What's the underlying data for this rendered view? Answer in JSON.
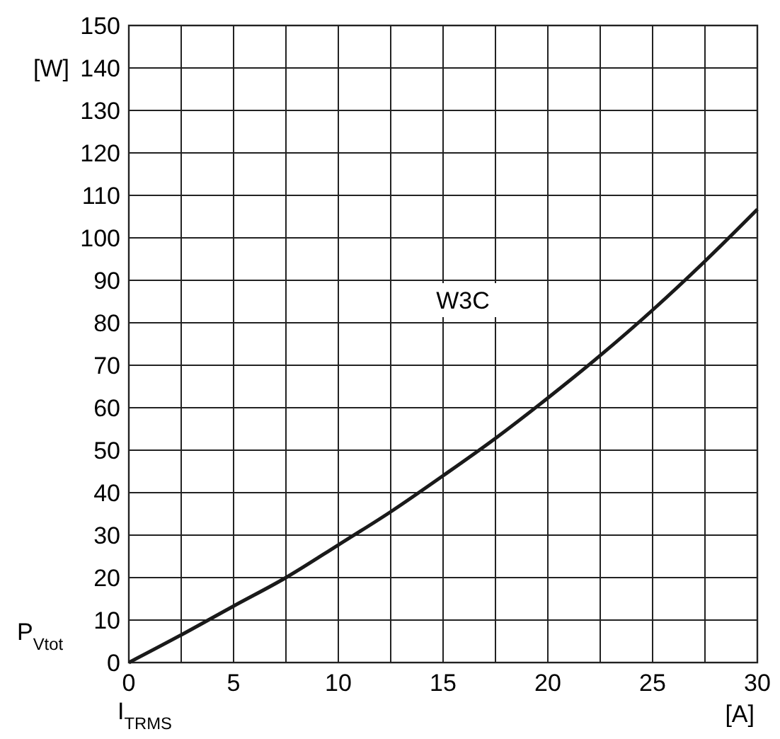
{
  "chart_data": {
    "type": "line",
    "xlabel": "I$_{TRMS}$",
    "ylabel": "P$_{Vtot}$",
    "annotations": [
      "[W]",
      "[A]"
    ],
    "x": [
      0,
      2.5,
      5,
      7.5,
      10,
      12.5,
      15,
      17.5,
      20,
      22.5,
      25,
      27.5,
      30
    ],
    "series": [
      {
        "name": "W3C",
        "color": "#1a1a1a",
        "values": [
          0,
          6.5,
          13.3,
          20,
          27.7,
          35.5,
          44,
          52.8,
          62.3,
          72.3,
          83,
          94.5,
          106.7
        ]
      }
    ],
    "xlim": [
      0,
      30
    ],
    "ylim": [
      0,
      150
    ],
    "xticks": [
      0,
      {
        "value": 2.5,
        "label": null
      },
      5,
      {
        "value": 7.5,
        "label": null
      },
      10,
      {
        "value": 12.5,
        "label": null
      },
      15,
      {
        "value": 17.5,
        "label": null
      },
      20,
      {
        "value": 22.5,
        "label": null
      },
      25,
      {
        "value": 27.5,
        "label": null
      },
      30
    ],
    "yticks": [
      0,
      10,
      20,
      30,
      40,
      50,
      60,
      70,
      80,
      90,
      100,
      110,
      120,
      130,
      140,
      150
    ],
    "grid": true,
    "marker": "none",
    "line_style": "solid"
  }
}
